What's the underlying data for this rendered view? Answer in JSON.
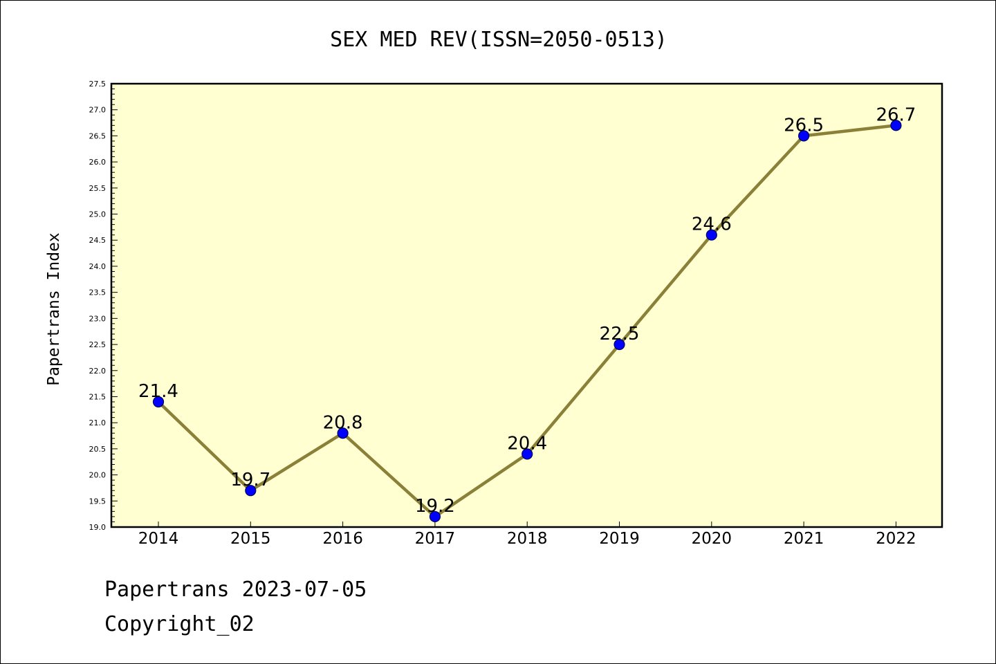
{
  "chart_data": {
    "type": "line",
    "title": "SEX MED REV(ISSN=2050-0513)",
    "xlabel": "",
    "ylabel": "Papertrans Index",
    "categories": [
      "2014",
      "2015",
      "2016",
      "2017",
      "2018",
      "2019",
      "2020",
      "2021",
      "2022"
    ],
    "series": [
      {
        "values": [
          21.4,
          19.7,
          20.8,
          19.2,
          20.4,
          22.5,
          24.6,
          26.5,
          26.7
        ]
      }
    ],
    "data_labels": [
      "21.4",
      "19.7",
      "20.8",
      "19.2",
      "20.4",
      "22.5",
      "24.6",
      "26.5",
      "26.7"
    ],
    "ylim": [
      19.0,
      27.5
    ],
    "y_ticks": [
      "19.0",
      "19.5",
      "20.0",
      "20.5",
      "21.0",
      "21.5",
      "22.0",
      "22.5",
      "23.0",
      "23.5",
      "24.0",
      "24.5",
      "25.0",
      "25.5",
      "26.0",
      "26.5",
      "27.0",
      "27.5"
    ],
    "grid": false,
    "legend": "none",
    "colors": {
      "plot_background": "#ffffd2",
      "line": "#8b8038",
      "marker_fill": "#0000ff",
      "marker_edge": "#00005a"
    }
  },
  "footer": {
    "line1": "Papertrans 2023-07-05",
    "line2": "Copyright_02"
  }
}
